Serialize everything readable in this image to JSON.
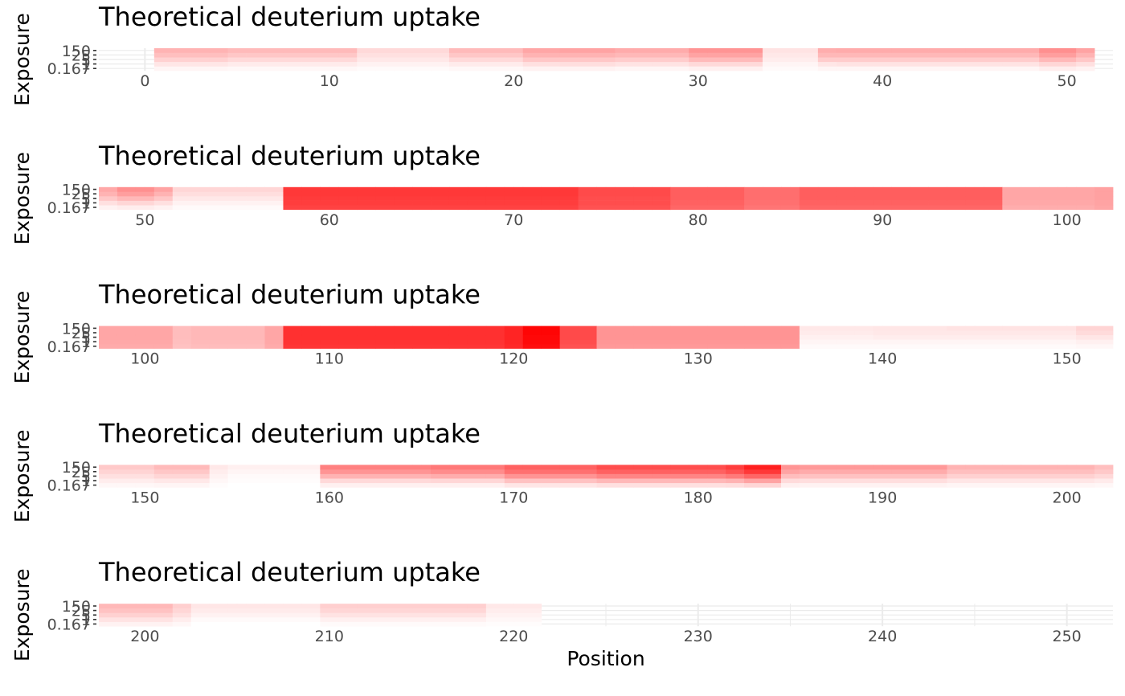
{
  "chart_data": {
    "type": "heatmap",
    "x_axis_title": "Position",
    "y_axis_title": "Exposure",
    "grid": true,
    "legend": "none",
    "color_scale": {
      "low": "#ffffff",
      "high": "#ff0000"
    },
    "exposures": [
      "0.167",
      "1",
      "5",
      "25",
      "150"
    ],
    "ytick_labels_shown": [
      "0.167",
      "1",
      "5",
      "25",
      "150"
    ],
    "panels": [
      {
        "title": "Theoretical deuterium uptake",
        "xlim": [
          -2.5,
          52.5
        ],
        "xticks": [
          0,
          10,
          20,
          30,
          40,
          50
        ],
        "segments": [
          {
            "start": 1,
            "end": 4,
            "values": [
              0.04,
              0.1,
              0.18,
              0.25,
              0.3
            ]
          },
          {
            "start": 5,
            "end": 11,
            "values": [
              0.03,
              0.08,
              0.15,
              0.22,
              0.27
            ]
          },
          {
            "start": 12,
            "end": 16,
            "values": [
              0.02,
              0.05,
              0.09,
              0.12,
              0.15
            ]
          },
          {
            "start": 17,
            "end": 20,
            "values": [
              0.03,
              0.08,
              0.15,
              0.22,
              0.27
            ]
          },
          {
            "start": 21,
            "end": 22,
            "values": [
              0.05,
              0.12,
              0.22,
              0.3,
              0.35
            ]
          },
          {
            "start": 23,
            "end": 25,
            "values": [
              0.05,
              0.13,
              0.22,
              0.3,
              0.36
            ]
          },
          {
            "start": 26,
            "end": 29,
            "values": [
              0.04,
              0.11,
              0.2,
              0.28,
              0.33
            ]
          },
          {
            "start": 30,
            "end": 33,
            "values": [
              0.06,
              0.15,
              0.27,
              0.36,
              0.42
            ]
          },
          {
            "start": 34,
            "end": 36,
            "values": [
              0.02,
              0.04,
              0.07,
              0.09,
              0.11
            ]
          },
          {
            "start": 37,
            "end": 37,
            "values": [
              0.04,
              0.1,
              0.2,
              0.28,
              0.32
            ]
          },
          {
            "start": 38,
            "end": 48,
            "values": [
              0.04,
              0.11,
              0.2,
              0.28,
              0.33
            ]
          },
          {
            "start": 49,
            "end": 50,
            "values": [
              0.07,
              0.16,
              0.28,
              0.38,
              0.44
            ]
          },
          {
            "start": 51,
            "end": 51,
            "values": [
              0.05,
              0.12,
              0.22,
              0.3,
              0.36
            ]
          }
        ]
      },
      {
        "title": "Theoretical deuterium uptake",
        "xlim": [
          47.5,
          102.5
        ],
        "xticks": [
          50,
          60,
          70,
          80,
          90,
          100
        ],
        "segments": [
          {
            "start": 48,
            "end": 48,
            "values": [
              0.05,
              0.12,
              0.22,
              0.3,
              0.34
            ]
          },
          {
            "start": 49,
            "end": 50,
            "values": [
              0.07,
              0.16,
              0.28,
              0.38,
              0.44
            ]
          },
          {
            "start": 51,
            "end": 51,
            "values": [
              0.05,
              0.12,
              0.22,
              0.3,
              0.36
            ]
          },
          {
            "start": 52,
            "end": 57,
            "values": [
              0.02,
              0.05,
              0.09,
              0.13,
              0.16
            ]
          },
          {
            "start": 58,
            "end": 73,
            "values": [
              0.74,
              0.76,
              0.77,
              0.78,
              0.78
            ]
          },
          {
            "start": 74,
            "end": 78,
            "values": [
              0.68,
              0.7,
              0.7,
              0.71,
              0.71
            ]
          },
          {
            "start": 79,
            "end": 82,
            "values": [
              0.6,
              0.62,
              0.63,
              0.63,
              0.63
            ]
          },
          {
            "start": 83,
            "end": 85,
            "values": [
              0.54,
              0.56,
              0.57,
              0.57,
              0.57
            ]
          },
          {
            "start": 86,
            "end": 96,
            "values": [
              0.6,
              0.62,
              0.63,
              0.63,
              0.63
            ]
          },
          {
            "start": 97,
            "end": 101,
            "values": [
              0.32,
              0.34,
              0.35,
              0.35,
              0.35
            ]
          },
          {
            "start": 102,
            "end": 102,
            "values": [
              0.35,
              0.36,
              0.37,
              0.37,
              0.37
            ]
          }
        ]
      },
      {
        "title": "Theoretical deuterium uptake",
        "xlim": [
          97.5,
          152.5
        ],
        "xticks": [
          100,
          110,
          120,
          130,
          140,
          150
        ],
        "segments": [
          {
            "start": 98,
            "end": 101,
            "values": [
              0.33,
              0.34,
              0.35,
              0.35,
              0.35
            ]
          },
          {
            "start": 102,
            "end": 102,
            "values": [
              0.24,
              0.25,
              0.26,
              0.26,
              0.26
            ]
          },
          {
            "start": 103,
            "end": 106,
            "values": [
              0.26,
              0.27,
              0.28,
              0.28,
              0.28
            ]
          },
          {
            "start": 107,
            "end": 107,
            "values": [
              0.33,
              0.34,
              0.35,
              0.35,
              0.35
            ]
          },
          {
            "start": 108,
            "end": 119,
            "values": [
              0.79,
              0.8,
              0.81,
              0.81,
              0.81
            ]
          },
          {
            "start": 120,
            "end": 120,
            "values": [
              0.84,
              0.85,
              0.86,
              0.86,
              0.86
            ]
          },
          {
            "start": 121,
            "end": 122,
            "values": [
              0.94,
              0.96,
              0.97,
              0.98,
              0.98
            ]
          },
          {
            "start": 123,
            "end": 124,
            "values": [
              0.68,
              0.7,
              0.71,
              0.71,
              0.71
            ]
          },
          {
            "start": 125,
            "end": 135,
            "values": [
              0.4,
              0.41,
              0.42,
              0.42,
              0.42
            ]
          },
          {
            "start": 136,
            "end": 139,
            "values": [
              0.02,
              0.04,
              0.06,
              0.08,
              0.09
            ]
          },
          {
            "start": 140,
            "end": 143,
            "values": [
              0.02,
              0.04,
              0.07,
              0.09,
              0.1
            ]
          },
          {
            "start": 144,
            "end": 150,
            "values": [
              0.02,
              0.04,
              0.07,
              0.09,
              0.11
            ]
          },
          {
            "start": 151,
            "end": 152,
            "values": [
              0.03,
              0.06,
              0.1,
              0.14,
              0.17
            ]
          }
        ]
      },
      {
        "title": "Theoretical deuterium uptake",
        "xlim": [
          147.5,
          202.5
        ],
        "xticks": [
          150,
          160,
          170,
          180,
          190,
          200
        ],
        "segments": [
          {
            "start": 148,
            "end": 150,
            "values": [
              0.03,
              0.07,
              0.12,
              0.17,
              0.21
            ]
          },
          {
            "start": 151,
            "end": 153,
            "values": [
              0.04,
              0.09,
              0.16,
              0.22,
              0.27
            ]
          },
          {
            "start": 154,
            "end": 154,
            "values": [
              0.01,
              0.03,
              0.05,
              0.07,
              0.09
            ]
          },
          {
            "start": 155,
            "end": 159,
            "values": [
              0.0,
              0.01,
              0.02,
              0.04,
              0.06
            ]
          },
          {
            "start": 160,
            "end": 165,
            "values": [
              0.06,
              0.15,
              0.3,
              0.42,
              0.5
            ]
          },
          {
            "start": 166,
            "end": 169,
            "values": [
              0.06,
              0.16,
              0.32,
              0.45,
              0.53
            ]
          },
          {
            "start": 170,
            "end": 174,
            "values": [
              0.1,
              0.24,
              0.42,
              0.56,
              0.62
            ]
          },
          {
            "start": 175,
            "end": 181,
            "values": [
              0.12,
              0.28,
              0.48,
              0.62,
              0.7
            ]
          },
          {
            "start": 182,
            "end": 182,
            "values": [
              0.13,
              0.3,
              0.52,
              0.68,
              0.76
            ]
          },
          {
            "start": 183,
            "end": 184,
            "values": [
              0.16,
              0.36,
              0.6,
              0.78,
              0.88
            ]
          },
          {
            "start": 185,
            "end": 185,
            "values": [
              0.06,
              0.14,
              0.26,
              0.36,
              0.42
            ]
          },
          {
            "start": 186,
            "end": 193,
            "values": [
              0.05,
              0.13,
              0.24,
              0.33,
              0.4
            ]
          },
          {
            "start": 194,
            "end": 201,
            "values": [
              0.04,
              0.1,
              0.18,
              0.25,
              0.3
            ]
          },
          {
            "start": 202,
            "end": 202,
            "values": [
              0.03,
              0.08,
              0.15,
              0.21,
              0.25
            ]
          }
        ]
      },
      {
        "title": "Theoretical deuterium uptake",
        "xlim": [
          197.5,
          252.5
        ],
        "xticks": [
          200,
          210,
          220,
          230,
          240,
          250
        ],
        "segments": [
          {
            "start": 198,
            "end": 201,
            "values": [
              0.05,
              0.11,
              0.18,
              0.24,
              0.28
            ]
          },
          {
            "start": 202,
            "end": 202,
            "values": [
              0.03,
              0.07,
              0.12,
              0.16,
              0.19
            ]
          },
          {
            "start": 203,
            "end": 209,
            "values": [
              0.0,
              0.02,
              0.05,
              0.08,
              0.1
            ]
          },
          {
            "start": 210,
            "end": 218,
            "values": [
              0.02,
              0.06,
              0.11,
              0.16,
              0.19
            ]
          },
          {
            "start": 219,
            "end": 221,
            "values": [
              0.01,
              0.03,
              0.05,
              0.07,
              0.09
            ]
          }
        ]
      }
    ]
  }
}
